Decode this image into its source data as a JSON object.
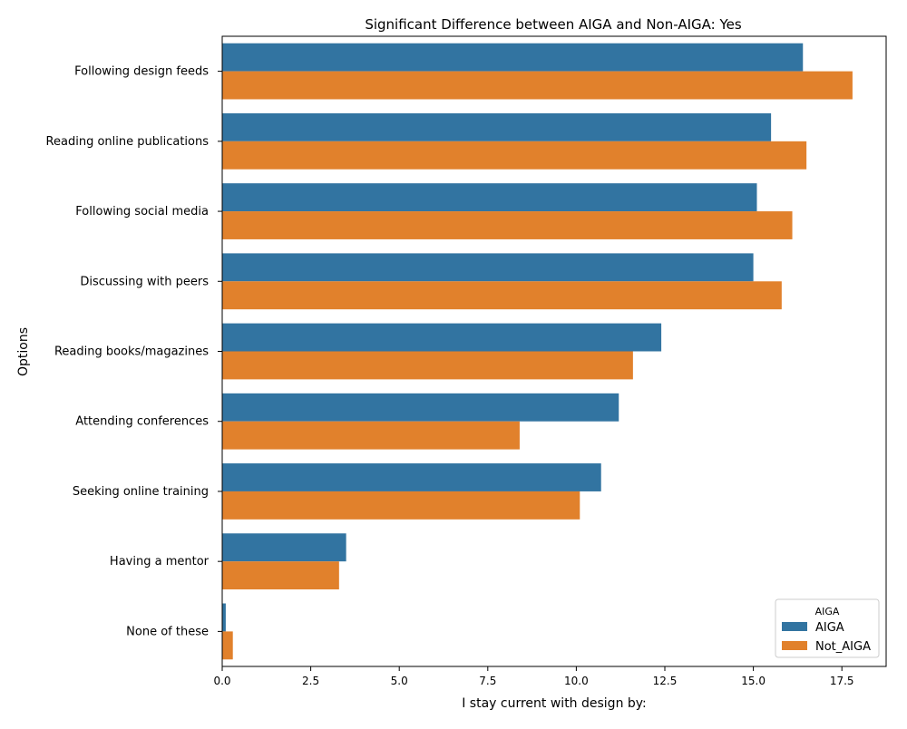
{
  "chart_data": {
    "type": "bar",
    "orientation": "horizontal",
    "title": "Significant Difference between AIGA and Non-AIGA: Yes",
    "xlabel": "I stay current with design by:",
    "ylabel": "Options",
    "categories": [
      "Following design feeds",
      "Reading online publications",
      "Following social media",
      "Discussing with peers",
      "Reading books/magazines",
      "Attending conferences",
      "Seeking online training",
      "Having a mentor",
      "None of these"
    ],
    "series": [
      {
        "name": "AIGA",
        "color": "#3274a1",
        "values": [
          16.4,
          15.5,
          15.1,
          15.0,
          12.4,
          11.2,
          10.7,
          3.5,
          0.1
        ]
      },
      {
        "name": "Not_AIGA",
        "color": "#e1812c",
        "values": [
          17.8,
          16.5,
          16.1,
          15.8,
          11.6,
          8.4,
          10.1,
          3.3,
          0.3
        ]
      }
    ],
    "xlim": [
      0,
      18.75
    ],
    "xticks": [
      "0.0",
      "2.5",
      "5.0",
      "7.5",
      "10.0",
      "12.5",
      "15.0",
      "17.5"
    ],
    "xtick_values": [
      0,
      2.5,
      5,
      7.5,
      10,
      12.5,
      15,
      17.5
    ],
    "grid": false,
    "legend": {
      "title": "AIGA",
      "placement": "lower-right",
      "entries": [
        "AIGA",
        "Not_AIGA"
      ]
    }
  }
}
